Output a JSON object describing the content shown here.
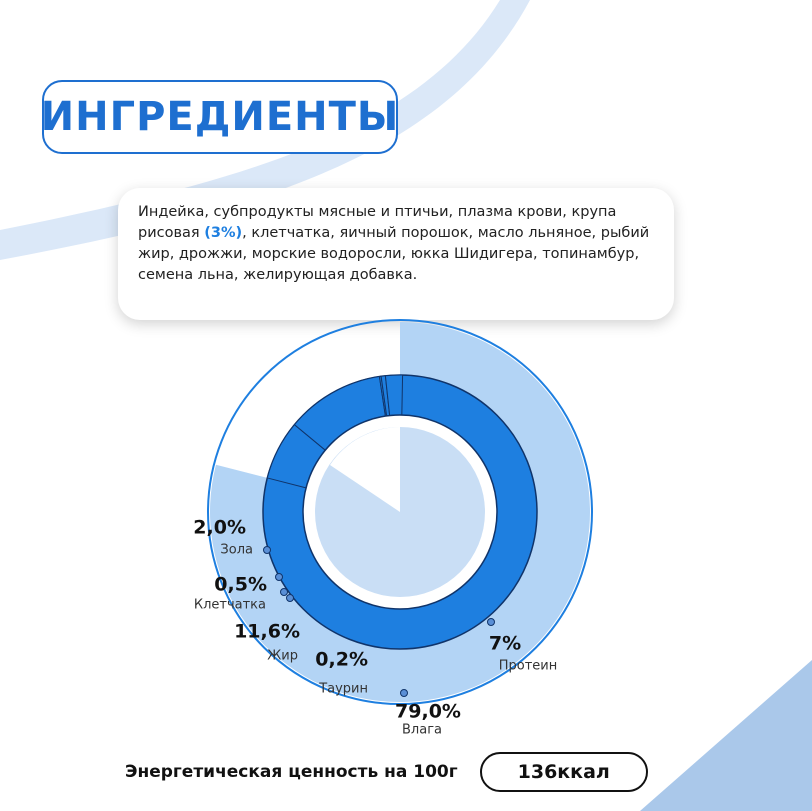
{
  "header": {
    "title": "ИНГРЕДИЕНТЫ"
  },
  "ingredients": {
    "text_before": "Индейка, субпродукты мясные и птичьи, плазма крови, крупа рисовая ",
    "highlight": "(3%)",
    "text_after": ", клетчатка, яичный порошок, масло льняное, рыбий жир, дрожжи, морские водоросли, юкка Шидигера, топинамбур, семена льна, желирующая добавка."
  },
  "chart_data": {
    "type": "donut",
    "categories": [
      "Влага",
      "Протеин",
      "Жир",
      "Таурин",
      "Клетчатка",
      "Зола"
    ],
    "values": [
      79.0,
      7,
      11.6,
      0.2,
      0.5,
      2.0
    ],
    "value_labels": [
      "79,0%",
      "7%",
      "11,6%",
      "0,2%",
      "0,5%",
      "2,0%"
    ],
    "colors": [
      "#b3d4f5",
      "#1e7fe0",
      "#1e7fe0",
      "#1e7fe0",
      "#1e7fe0",
      "#1e7fe0"
    ]
  },
  "footer": {
    "label": "Энергетическая ценность на 100г",
    "value": "136ккал"
  }
}
